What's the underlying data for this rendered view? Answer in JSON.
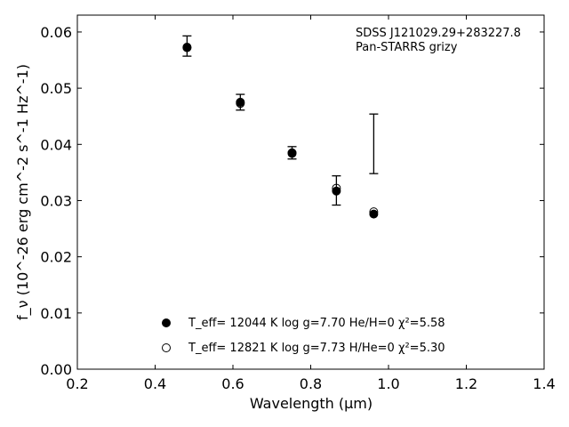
{
  "chart_data": {
    "type": "scatter",
    "xlabel": "Wavelength (μm)",
    "ylabel": "f_ν (10^-26 erg cm^-2 s^-1 Hz^-1)",
    "xlim": [
      0.2,
      1.4
    ],
    "ylim": [
      0.0,
      0.063
    ],
    "xticks": [
      "0.2",
      "0.4",
      "0.6",
      "0.8",
      "1.0",
      "1.2",
      "1.4"
    ],
    "yticks": [
      "0.00",
      "0.01",
      "0.02",
      "0.03",
      "0.04",
      "0.05",
      "0.06"
    ],
    "annotation": [
      "SDSS J121029.29+283227.8",
      "Pan-STARRS grizy"
    ],
    "grid": false,
    "legend_position": "bottom-center",
    "observed": {
      "x": [
        0.482,
        0.619,
        0.752,
        0.866,
        0.962
      ],
      "y": [
        0.0575,
        0.0475,
        0.0385,
        0.0318,
        0.0401
      ],
      "err": [
        0.0018,
        0.0014,
        0.0011,
        0.0026,
        0.0053
      ]
    },
    "series": [
      {
        "name": "T_eff= 12044 K  log g=7.70  He/H=0  χ²=5.58",
        "marker": "filled-circle",
        "x": [
          0.482,
          0.619,
          0.752,
          0.866,
          0.962
        ],
        "y": [
          0.0573,
          0.0475,
          0.0385,
          0.0317,
          0.0276
        ]
      },
      {
        "name": "T_eff= 12821 K  log g=7.73  H/He=0  χ²=5.30",
        "marker": "open-circle",
        "x": [
          0.482,
          0.619,
          0.752,
          0.866,
          0.962
        ],
        "y": [
          0.0572,
          0.0473,
          0.0384,
          0.0322,
          0.028
        ]
      }
    ]
  }
}
